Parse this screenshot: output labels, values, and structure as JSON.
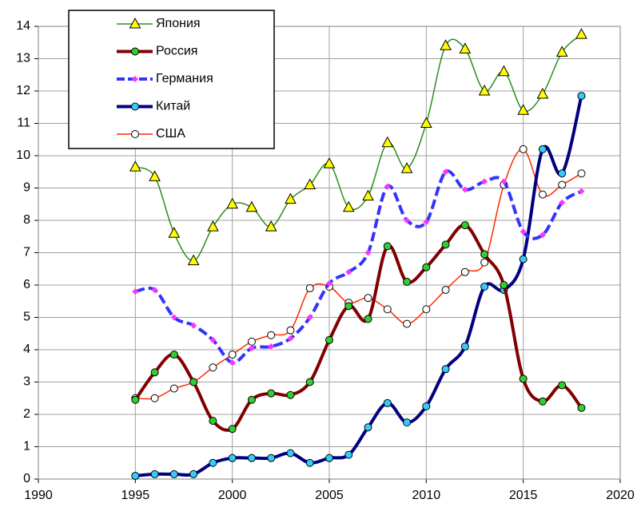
{
  "chart_data": {
    "type": "line",
    "x": [
      1995,
      1996,
      1997,
      1998,
      1999,
      2000,
      2001,
      2002,
      2003,
      2004,
      2005,
      2006,
      2007,
      2008,
      2009,
      2010,
      2011,
      2012,
      2013,
      2014,
      2015,
      2016,
      2017,
      2018
    ],
    "xlim": [
      1990,
      2020
    ],
    "xticks": [
      1990,
      1995,
      2000,
      2005,
      2010,
      2015,
      2020
    ],
    "ylim": [
      0,
      14
    ],
    "yticks": [
      0,
      1,
      2,
      3,
      4,
      5,
      6,
      7,
      8,
      9,
      10,
      11,
      12,
      13,
      14
    ],
    "grid": true,
    "legend": "upper left",
    "series": [
      {
        "name": "Япония",
        "color": "#2e8b22",
        "marker": "triangle",
        "marker_color": "#ffff00",
        "line_width": 1.5,
        "dash": false,
        "values": [
          9.65,
          9.35,
          7.6,
          6.75,
          7.8,
          8.5,
          8.4,
          7.8,
          8.65,
          9.1,
          9.75,
          8.4,
          8.75,
          10.4,
          9.6,
          11.0,
          13.4,
          13.3,
          12.0,
          12.6,
          11.4,
          11.9,
          13.2,
          13.75
        ]
      },
      {
        "name": "Россия",
        "color": "#800000",
        "marker": "circle",
        "marker_color": "#33cc33",
        "line_width": 4,
        "dash": false,
        "values": [
          2.45,
          3.3,
          3.85,
          3.0,
          1.8,
          1.55,
          2.45,
          2.65,
          2.6,
          3.0,
          4.3,
          5.35,
          4.95,
          7.2,
          6.1,
          6.55,
          7.25,
          7.85,
          6.95,
          6.0,
          3.1,
          2.4,
          2.9,
          2.2
        ]
      },
      {
        "name": "Германия",
        "color": "#3333ff",
        "marker": "diamond",
        "marker_color": "#ff33ff",
        "line_width": 4,
        "dash": true,
        "values": [
          5.8,
          5.85,
          5.0,
          4.75,
          4.3,
          3.6,
          4.05,
          4.1,
          4.35,
          5.0,
          6.05,
          6.4,
          7.0,
          9.05,
          8.0,
          7.95,
          9.5,
          8.95,
          9.2,
          9.2,
          7.65,
          7.55,
          8.55,
          8.9
        ]
      },
      {
        "name": "Китай",
        "color": "#000080",
        "marker": "circle",
        "marker_color": "#33ccff",
        "line_width": 4,
        "dash": false,
        "values": [
          0.1,
          0.15,
          0.15,
          0.15,
          0.5,
          0.65,
          0.65,
          0.65,
          0.8,
          0.5,
          0.65,
          0.75,
          1.6,
          2.35,
          1.75,
          2.25,
          3.4,
          4.1,
          5.95,
          5.85,
          6.8,
          10.2,
          9.45,
          11.85
        ]
      },
      {
        "name": "США",
        "color": "#ff2a00",
        "marker": "circle",
        "marker_color": "#ffffff",
        "line_width": 1.5,
        "dash": false,
        "values": [
          2.5,
          2.5,
          2.8,
          3.0,
          3.45,
          3.85,
          4.25,
          4.45,
          4.6,
          5.9,
          5.95,
          5.45,
          5.6,
          5.25,
          4.8,
          5.25,
          5.85,
          6.4,
          6.7,
          9.1,
          10.2,
          8.8,
          9.1,
          9.45
        ]
      }
    ]
  }
}
